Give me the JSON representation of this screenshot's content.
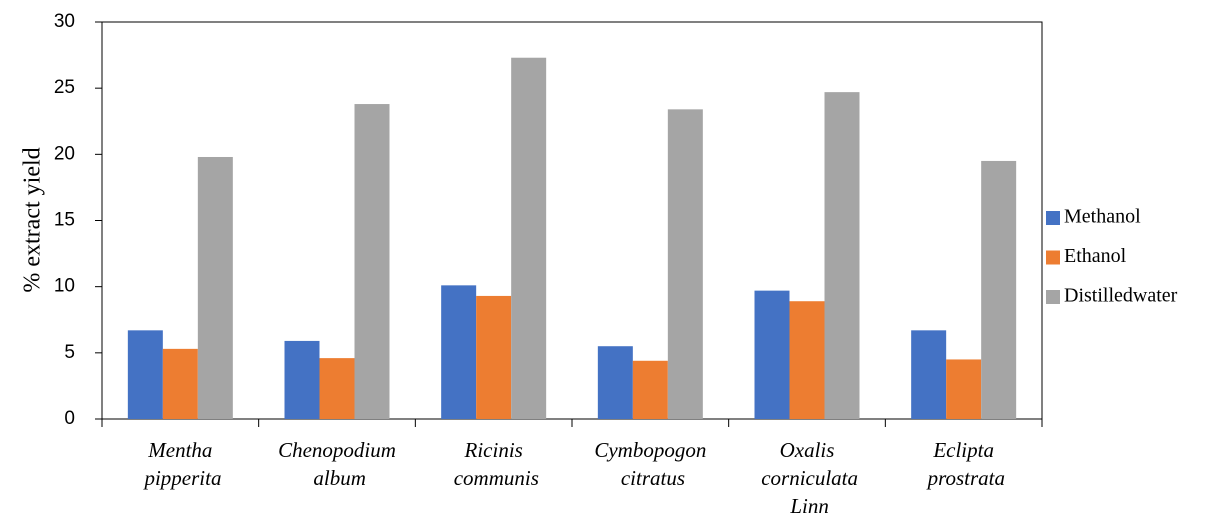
{
  "chart_data": {
    "type": "bar",
    "y_label": "% extract yield",
    "categories": [
      "Mentha pipperita",
      "Chenopodium album",
      "Ricinis communis",
      "Cymbopogon citratus",
      "Oxalis corniculata Linn",
      "Eclipta prostrata"
    ],
    "series": [
      {
        "name": "Methanol",
        "color": "#4472c4",
        "values": [
          6.7,
          5.9,
          10.1,
          5.5,
          9.7,
          6.7
        ]
      },
      {
        "name": "Ethanol",
        "color": "#ed7d31",
        "values": [
          5.3,
          4.6,
          9.3,
          4.4,
          8.9,
          4.5
        ]
      },
      {
        "name": "Distilledwater",
        "color": "#a5a5a5",
        "values": [
          19.8,
          23.8,
          27.3,
          23.4,
          24.7,
          19.5
        ]
      }
    ],
    "ylim": [
      0,
      30
    ],
    "yticks": [
      0,
      5,
      10,
      15,
      20,
      25,
      30
    ],
    "legend": "right"
  }
}
